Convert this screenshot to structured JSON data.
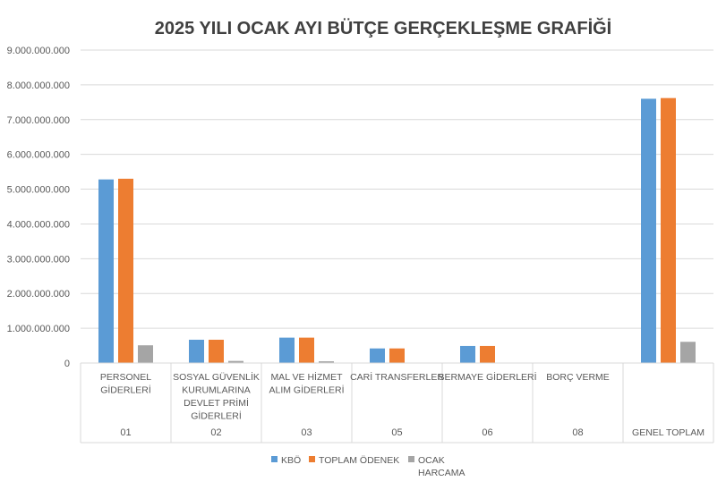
{
  "chart_data": {
    "type": "bar",
    "title": "2025 YILI OCAK AYI BÜTÇE GERÇEKLEŞME GRAFİĞİ",
    "categories": [
      {
        "code": "01",
        "label": [
          "PERSONEL",
          "GİDERLERİ"
        ]
      },
      {
        "code": "02",
        "label": [
          "SOSYAL GÜVENLİK",
          "KURUMLARINA",
          "DEVLET PRİMİ",
          "GİDERLERİ"
        ]
      },
      {
        "code": "03",
        "label": [
          "MAL VE HİZMET",
          "ALIM GİDERLERİ"
        ]
      },
      {
        "code": "05",
        "label": [
          "CARİ TRANSFERLER"
        ]
      },
      {
        "code": "06",
        "label": [
          "SERMAYE GİDERLERİ"
        ]
      },
      {
        "code": "08",
        "label": [
          "BORÇ VERME"
        ]
      },
      {
        "code": "",
        "label": [
          "GENEL TOPLAM"
        ]
      }
    ],
    "series": [
      {
        "name": "KBÖ",
        "legend_lines": [
          "KBÖ"
        ],
        "color": "#5B9BD5",
        "values": [
          5280000000,
          670000000,
          730000000,
          420000000,
          490000000,
          0,
          7600000000
        ]
      },
      {
        "name": "TOPLAM ÖDENEK",
        "legend_lines": [
          "TOPLAM ÖDENEK"
        ],
        "color": "#ED7D31",
        "values": [
          5300000000,
          670000000,
          730000000,
          420000000,
          490000000,
          0,
          7620000000
        ]
      },
      {
        "name": "OCAK HARCAMA",
        "legend_lines": [
          "OCAK",
          "HARCAMA"
        ],
        "color": "#A5A5A5",
        "values": [
          510000000,
          60000000,
          50000000,
          0,
          0,
          0,
          610000000
        ]
      }
    ],
    "ylim": [
      0,
      9000000000
    ],
    "yticks": [
      0,
      1000000000,
      2000000000,
      3000000000,
      4000000000,
      5000000000,
      6000000000,
      7000000000,
      8000000000,
      9000000000
    ],
    "ytick_labels": [
      "0",
      "1.000.000.000",
      "2.000.000.000",
      "3.000.000.000",
      "4.000.000.000",
      "5.000.000.000",
      "6.000.000.000",
      "7.000.000.000",
      "8.000.000.000",
      "9.000.000.000"
    ],
    "grid": true,
    "legend_position": "bottom"
  }
}
